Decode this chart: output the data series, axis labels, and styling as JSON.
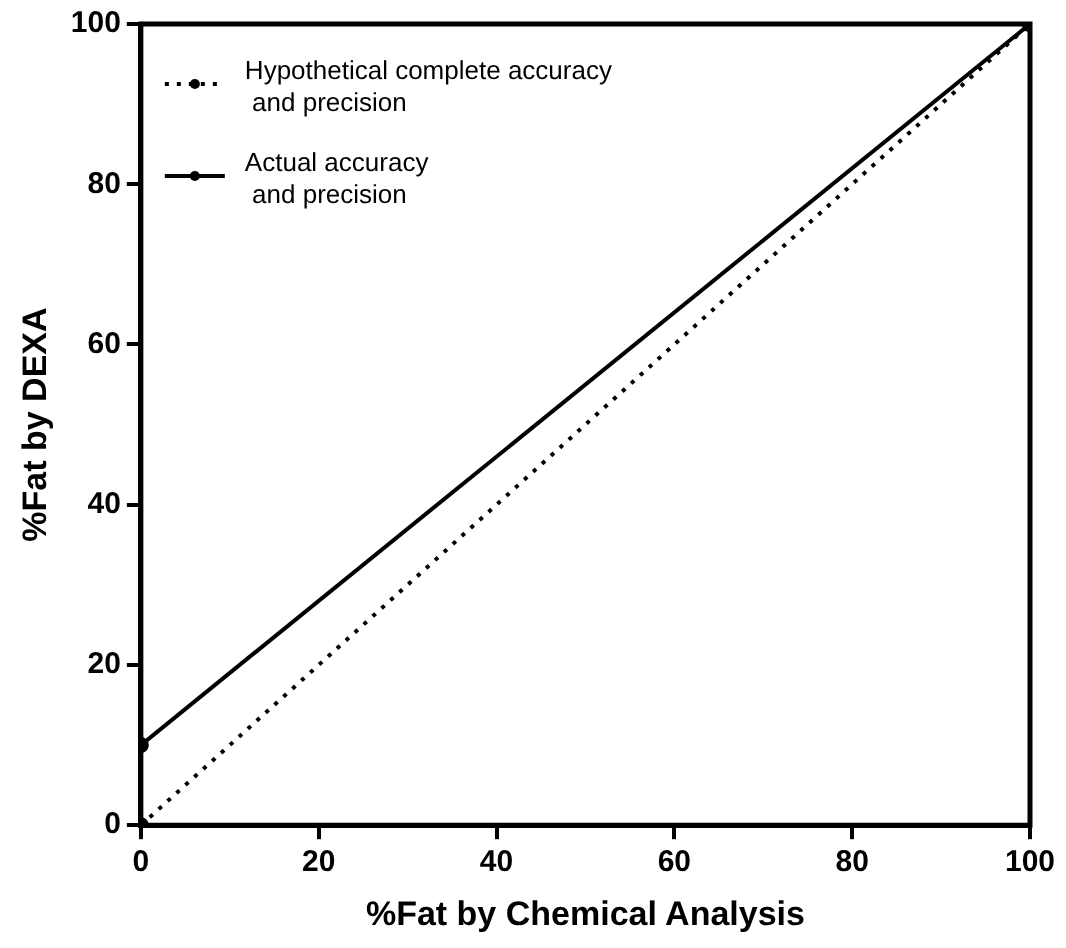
{
  "chart_data": {
    "type": "line",
    "xlabel": "%Fat by Chemical Analysis",
    "ylabel": "%Fat by DEXA",
    "xlim": [
      0,
      100
    ],
    "xticks": [
      0,
      20,
      40,
      60,
      80,
      100
    ],
    "ylim": [
      0,
      100
    ],
    "yticks": [
      0,
      20,
      40,
      60,
      80,
      100
    ],
    "grid": false,
    "x": [
      0,
      100
    ],
    "legend": "top left",
    "marker": "circle",
    "series": [
      {
        "name": "Hypothetical complete accuracy\n and precision",
        "color": "#000000",
        "line_style": "dotted",
        "values": [
          0,
          100
        ]
      },
      {
        "name": "Actual accuracy\n and precision",
        "color": "#000000",
        "line_style": "solid",
        "values": [
          10,
          100
        ]
      }
    ]
  }
}
